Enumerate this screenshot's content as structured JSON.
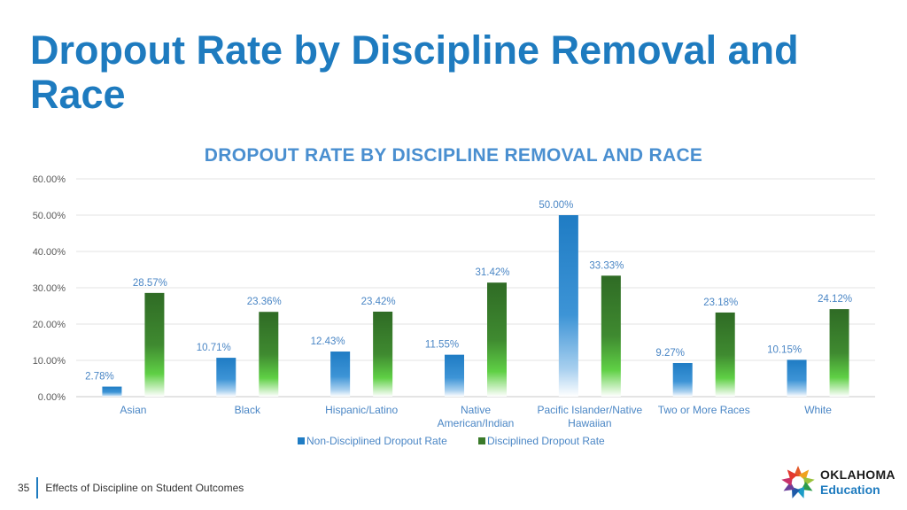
{
  "slide": {
    "title": "Dropout Rate by Discipline Removal and Race",
    "page_number": "35",
    "footer_text": "Effects of Discipline on Student Outcomes",
    "logo_text_1": "OKLAHOMA",
    "logo_text_2": "Education"
  },
  "chart_data": {
    "type": "bar",
    "title": "DROPOUT RATE BY DISCIPLINE REMOVAL AND RACE",
    "xlabel": "",
    "ylabel": "",
    "ylim": [
      0,
      60
    ],
    "yticks": [
      "0.00%",
      "10.00%",
      "20.00%",
      "30.00%",
      "40.00%",
      "50.00%",
      "60.00%"
    ],
    "grid": true,
    "legend_position": "bottom",
    "categories": [
      [
        "Asian"
      ],
      [
        "Black"
      ],
      [
        "Hispanic/Latino"
      ],
      [
        "Native",
        "American/Indian"
      ],
      [
        "Pacific Islander/Native",
        "Hawaiian"
      ],
      [
        "Two or More Races"
      ],
      [
        "White"
      ]
    ],
    "series": [
      {
        "name": "Non-Disciplined Dropout Rate",
        "color": "#1f7cc4",
        "values": [
          2.78,
          10.71,
          12.43,
          11.55,
          50.0,
          9.27,
          10.15
        ],
        "labels": [
          "2.78%",
          "10.71%",
          "12.43%",
          "11.55%",
          "50.00%",
          "9.27%",
          "10.15%"
        ]
      },
      {
        "name": "Disciplined Dropout Rate",
        "color": "#3a7a2a",
        "values": [
          28.57,
          23.36,
          23.42,
          31.42,
          33.33,
          23.18,
          24.12
        ],
        "labels": [
          "28.57%",
          "23.36%",
          "23.42%",
          "31.42%",
          "33.33%",
          "23.18%",
          "24.12%"
        ]
      }
    ]
  }
}
